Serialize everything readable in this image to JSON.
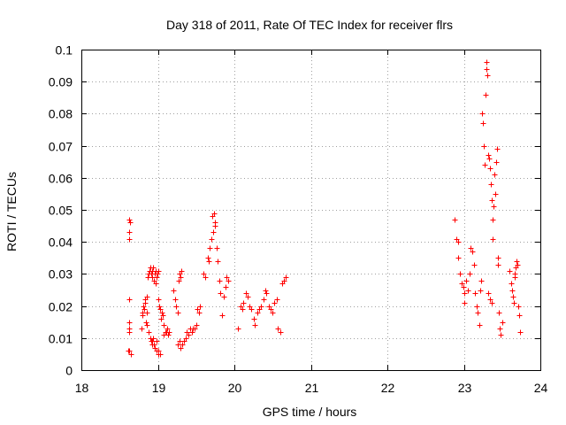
{
  "chart_data": {
    "type": "scatter",
    "title": "Day 318 of 2011, Rate Of TEC Index for receiver flrs",
    "xlabel": "GPS time / hours",
    "ylabel": "ROTI / TECUs",
    "xlim": [
      18,
      24
    ],
    "ylim": [
      0,
      0.1
    ],
    "x_ticks": [
      18,
      19,
      20,
      21,
      22,
      23,
      24
    ],
    "x_tick_labels": [
      "18",
      "19",
      "20",
      "21",
      "22",
      "23",
      "24"
    ],
    "y_ticks": [
      0,
      0.01,
      0.02,
      0.03,
      0.04,
      0.05,
      0.06,
      0.07,
      0.08,
      0.09,
      0.1
    ],
    "y_tick_labels": [
      "0",
      "0.01",
      "0.02",
      "0.03",
      "0.04",
      "0.05",
      "0.06",
      "0.07",
      "0.08",
      "0.09",
      "0.1"
    ],
    "grid": true,
    "marker": "+",
    "marker_color": "#ff0000",
    "series": [
      {
        "name": "ROTI",
        "points": [
          [
            18.63,
            0.047
          ],
          [
            18.64,
            0.046
          ],
          [
            18.62,
            0.043
          ],
          [
            18.62,
            0.041
          ],
          [
            18.63,
            0.022
          ],
          [
            18.63,
            0.015
          ],
          [
            18.62,
            0.013
          ],
          [
            18.62,
            0.012
          ],
          [
            18.61,
            0.006
          ],
          [
            18.63,
            0.006
          ],
          [
            18.65,
            0.005
          ],
          [
            18.79,
            0.013
          ],
          [
            18.8,
            0.017
          ],
          [
            18.8,
            0.018
          ],
          [
            18.82,
            0.019
          ],
          [
            18.81,
            0.02
          ],
          [
            18.83,
            0.021
          ],
          [
            18.83,
            0.022
          ],
          [
            18.84,
            0.015
          ],
          [
            18.85,
            0.014
          ],
          [
            18.86,
            0.018
          ],
          [
            18.86,
            0.023
          ],
          [
            18.87,
            0.029
          ],
          [
            18.88,
            0.03
          ],
          [
            18.89,
            0.031
          ],
          [
            18.9,
            0.032
          ],
          [
            18.91,
            0.03
          ],
          [
            18.92,
            0.031
          ],
          [
            18.93,
            0.029
          ],
          [
            18.94,
            0.032
          ],
          [
            18.96,
            0.03
          ],
          [
            18.97,
            0.031
          ],
          [
            18.98,
            0.029
          ],
          [
            18.99,
            0.03
          ],
          [
            19.0,
            0.031
          ],
          [
            18.95,
            0.028
          ],
          [
            18.97,
            0.027
          ],
          [
            18.88,
            0.012
          ],
          [
            18.9,
            0.01
          ],
          [
            18.91,
            0.009
          ],
          [
            18.92,
            0.008
          ],
          [
            18.93,
            0.009
          ],
          [
            18.95,
            0.008
          ],
          [
            18.96,
            0.007
          ],
          [
            18.98,
            0.006
          ],
          [
            19.0,
            0.005
          ],
          [
            19.01,
            0.006
          ],
          [
            19.03,
            0.005
          ],
          [
            18.94,
            0.01
          ],
          [
            18.98,
            0.009
          ],
          [
            19.0,
            0.022
          ],
          [
            19.02,
            0.02
          ],
          [
            19.03,
            0.019
          ],
          [
            19.05,
            0.018
          ],
          [
            19.06,
            0.017
          ],
          [
            19.04,
            0.016
          ],
          [
            19.07,
            0.014
          ],
          [
            19.1,
            0.012
          ],
          [
            19.08,
            0.011
          ],
          [
            19.11,
            0.012
          ],
          [
            19.13,
            0.011
          ],
          [
            19.15,
            0.012
          ],
          [
            19.12,
            0.013
          ],
          [
            19.2,
            0.025
          ],
          [
            19.22,
            0.022
          ],
          [
            19.24,
            0.02
          ],
          [
            19.26,
            0.018
          ],
          [
            19.28,
            0.03
          ],
          [
            19.3,
            0.029
          ],
          [
            19.31,
            0.031
          ],
          [
            19.27,
            0.028
          ],
          [
            19.26,
            0.008
          ],
          [
            19.28,
            0.009
          ],
          [
            19.3,
            0.007
          ],
          [
            19.32,
            0.008
          ],
          [
            19.34,
            0.009
          ],
          [
            19.36,
            0.01
          ],
          [
            19.38,
            0.012
          ],
          [
            19.4,
            0.011
          ],
          [
            19.42,
            0.013
          ],
          [
            19.44,
            0.012
          ],
          [
            19.46,
            0.013
          ],
          [
            19.48,
            0.013
          ],
          [
            19.5,
            0.014
          ],
          [
            19.52,
            0.019
          ],
          [
            19.54,
            0.018
          ],
          [
            19.55,
            0.02
          ],
          [
            19.6,
            0.03
          ],
          [
            19.62,
            0.029
          ],
          [
            19.65,
            0.035
          ],
          [
            19.67,
            0.034
          ],
          [
            19.68,
            0.038
          ],
          [
            19.7,
            0.041
          ],
          [
            19.72,
            0.043
          ],
          [
            19.74,
            0.046
          ],
          [
            19.73,
            0.049
          ],
          [
            19.71,
            0.048
          ],
          [
            19.75,
            0.045
          ],
          [
            19.77,
            0.038
          ],
          [
            19.78,
            0.034
          ],
          [
            19.8,
            0.028
          ],
          [
            19.82,
            0.024
          ],
          [
            19.84,
            0.017
          ],
          [
            19.86,
            0.023
          ],
          [
            19.88,
            0.026
          ],
          [
            19.9,
            0.029
          ],
          [
            19.92,
            0.028
          ],
          [
            20.05,
            0.013
          ],
          [
            20.08,
            0.02
          ],
          [
            20.1,
            0.019
          ],
          [
            20.12,
            0.021
          ],
          [
            20.15,
            0.024
          ],
          [
            20.17,
            0.023
          ],
          [
            20.2,
            0.02
          ],
          [
            20.22,
            0.019
          ],
          [
            20.25,
            0.016
          ],
          [
            20.27,
            0.014
          ],
          [
            20.3,
            0.018
          ],
          [
            20.32,
            0.019
          ],
          [
            20.35,
            0.02
          ],
          [
            20.38,
            0.022
          ],
          [
            20.4,
            0.025
          ],
          [
            20.42,
            0.024
          ],
          [
            20.45,
            0.02
          ],
          [
            20.47,
            0.019
          ],
          [
            20.5,
            0.018
          ],
          [
            20.52,
            0.021
          ],
          [
            20.55,
            0.022
          ],
          [
            20.57,
            0.013
          ],
          [
            20.6,
            0.012
          ],
          [
            20.62,
            0.027
          ],
          [
            20.65,
            0.028
          ],
          [
            20.67,
            0.029
          ],
          [
            22.88,
            0.047
          ],
          [
            22.9,
            0.041
          ],
          [
            22.92,
            0.04
          ],
          [
            22.93,
            0.035
          ],
          [
            22.95,
            0.03
          ],
          [
            22.97,
            0.027
          ],
          [
            22.99,
            0.026
          ],
          [
            23.0,
            0.024
          ],
          [
            23.01,
            0.021
          ],
          [
            23.03,
            0.028
          ],
          [
            23.05,
            0.025
          ],
          [
            23.07,
            0.03
          ],
          [
            23.09,
            0.038
          ],
          [
            23.11,
            0.037
          ],
          [
            23.13,
            0.033
          ],
          [
            23.15,
            0.024
          ],
          [
            23.17,
            0.02
          ],
          [
            23.18,
            0.018
          ],
          [
            23.2,
            0.014
          ],
          [
            23.21,
            0.025
          ],
          [
            23.23,
            0.028
          ],
          [
            23.24,
            0.08
          ],
          [
            23.25,
            0.077
          ],
          [
            23.26,
            0.07
          ],
          [
            23.27,
            0.064
          ],
          [
            23.28,
            0.086
          ],
          [
            23.29,
            0.094
          ],
          [
            23.3,
            0.096
          ],
          [
            23.31,
            0.092
          ],
          [
            23.32,
            0.067
          ],
          [
            23.33,
            0.066
          ],
          [
            23.34,
            0.063
          ],
          [
            23.35,
            0.058
          ],
          [
            23.36,
            0.053
          ],
          [
            23.37,
            0.041
          ],
          [
            23.38,
            0.047
          ],
          [
            23.39,
            0.051
          ],
          [
            23.4,
            0.061
          ],
          [
            23.41,
            0.055
          ],
          [
            23.42,
            0.065
          ],
          [
            23.43,
            0.069
          ],
          [
            23.44,
            0.035
          ],
          [
            23.45,
            0.033
          ],
          [
            23.46,
            0.018
          ],
          [
            23.47,
            0.013
          ],
          [
            23.48,
            0.011
          ],
          [
            23.5,
            0.015
          ],
          [
            23.32,
            0.024
          ],
          [
            23.34,
            0.022
          ],
          [
            23.36,
            0.021
          ],
          [
            23.6,
            0.031
          ],
          [
            23.62,
            0.027
          ],
          [
            23.63,
            0.025
          ],
          [
            23.64,
            0.023
          ],
          [
            23.65,
            0.021
          ],
          [
            23.66,
            0.03
          ],
          [
            23.67,
            0.029
          ],
          [
            23.68,
            0.032
          ],
          [
            23.69,
            0.034
          ],
          [
            23.7,
            0.033
          ],
          [
            23.71,
            0.02
          ],
          [
            23.72,
            0.017
          ],
          [
            23.73,
            0.012
          ]
        ]
      }
    ]
  }
}
